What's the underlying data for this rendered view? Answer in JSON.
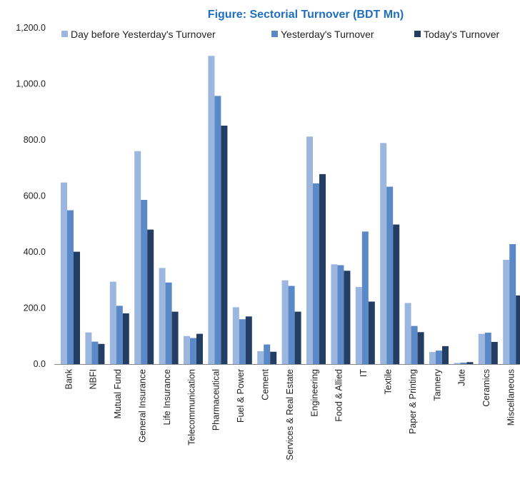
{
  "chart_data": {
    "type": "bar",
    "title": "Figure: Sectorial Turnover (BDT Mn)",
    "categories": [
      "Bank",
      "NBFI",
      "Mutual Fund",
      "General Insurance",
      "Life Insurance",
      "Telecommunication",
      "Pharmaceutical",
      "Fuel & Power",
      "Cement",
      "Services & Real Estate",
      "Engineering",
      "Food & Allied",
      "IT",
      "Textile",
      "Paper & Printing",
      "Tannery",
      "Jute",
      "Ceramics",
      "Miscellaneous"
    ],
    "series": [
      {
        "name": "Day before Yesterday's Turnover",
        "color": "#9bb7e0",
        "values": [
          648,
          113,
          294,
          760,
          343,
          100,
          1100,
          203,
          46,
          299,
          812,
          356,
          275,
          789,
          218,
          43,
          4,
          108,
          372
        ]
      },
      {
        "name": "Yesterday's Turnover",
        "color": "#5b88c6",
        "values": [
          549,
          80,
          208,
          586,
          291,
          93,
          957,
          160,
          70,
          279,
          645,
          353,
          473,
          633,
          136,
          48,
          5,
          112,
          428
        ]
      },
      {
        "name": "Today's Turnover",
        "color": "#243d63",
        "values": [
          401,
          72,
          181,
          480,
          187,
          108,
          851,
          170,
          44,
          187,
          678,
          333,
          223,
          498,
          114,
          64,
          7,
          79,
          245
        ]
      }
    ],
    "ylim": [
      0,
      1200
    ],
    "yticks": [
      0,
      200,
      400,
      600,
      800,
      1000,
      1200
    ],
    "ytick_labels": [
      "0.0",
      "200.0",
      "400.0",
      "600.0",
      "800.0",
      "1,000.0",
      "1,200.0"
    ],
    "legend": "top",
    "grid": false,
    "title_color": "#1f6fbf"
  }
}
